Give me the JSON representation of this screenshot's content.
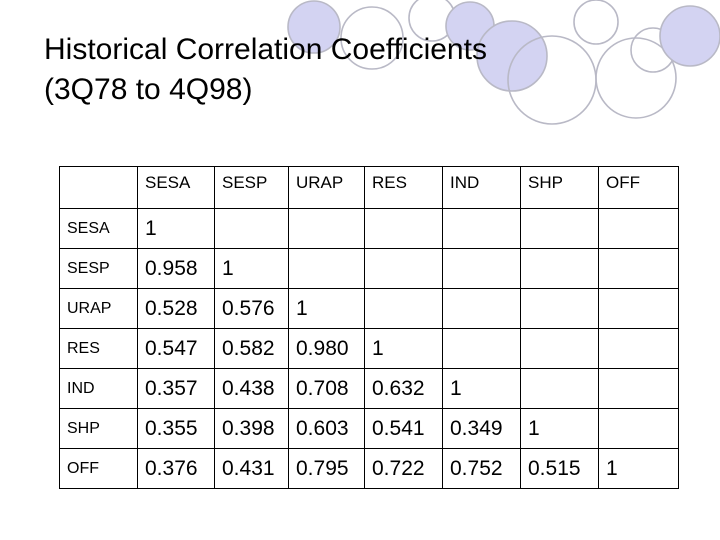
{
  "slide": {
    "title_line1": "Historical Correlation Coefficients",
    "title_line2": "(3Q78 to 4Q98)"
  },
  "table": {
    "columns": [
      "SESA",
      "SESP",
      "URAP",
      "RES",
      "IND",
      "SHP",
      "OFF"
    ],
    "rows": [
      {
        "label": "SESA",
        "values": [
          "1",
          "",
          "",
          "",
          "",
          "",
          ""
        ]
      },
      {
        "label": "SESP",
        "values": [
          "0.958",
          "1",
          "",
          "",
          "",
          "",
          ""
        ]
      },
      {
        "label": "URAP",
        "values": [
          "0.528",
          "0.576",
          "1",
          "",
          "",
          "",
          ""
        ]
      },
      {
        "label": "RES",
        "values": [
          "0.547",
          "0.582",
          "0.980",
          "1",
          "",
          "",
          ""
        ]
      },
      {
        "label": "IND",
        "values": [
          "0.357",
          "0.438",
          "0.708",
          "0.632",
          "1",
          "",
          ""
        ]
      },
      {
        "label": "SHP",
        "values": [
          "0.355",
          "0.398",
          "0.603",
          "0.541",
          "0.349",
          "1",
          ""
        ]
      },
      {
        "label": "OFF",
        "values": [
          "0.376",
          "0.431",
          "0.795",
          "0.722",
          "0.752",
          "0.515",
          "1"
        ]
      }
    ]
  },
  "theme": {
    "circle_fill": "#d3d3f2",
    "circle_stroke": "#b9b9c6"
  }
}
